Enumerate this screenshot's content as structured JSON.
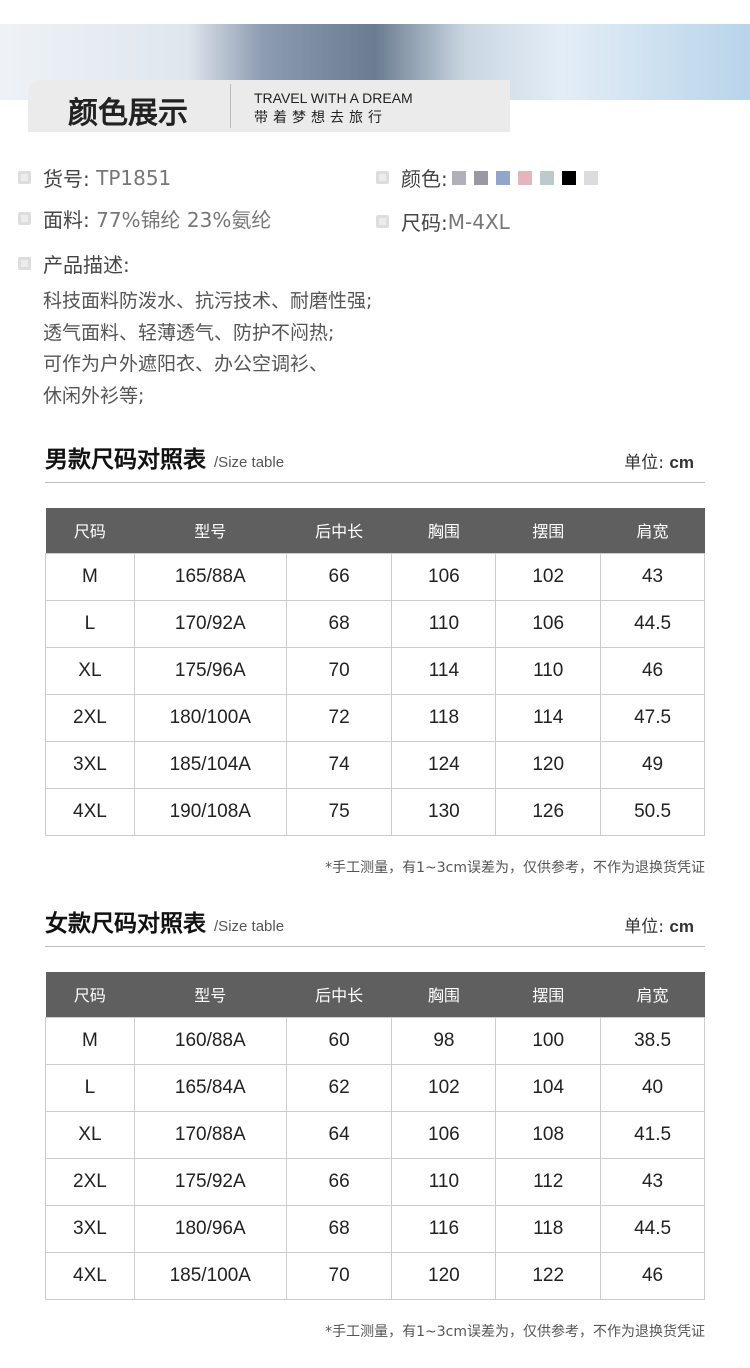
{
  "header": {
    "title": "颜色展示",
    "en": "TRAVEL WITH A DREAM",
    "cn": "带着梦想去旅行"
  },
  "info": {
    "item_label": "货号:",
    "item_value": "TP1851",
    "fabric_label": "面料:",
    "fabric_value": "77%锦纶 23%氨纶",
    "color_label": "颜色:",
    "size_label": "尺码:",
    "size_value": "M-4XL",
    "desc_label": "产品描述:",
    "desc_lines": [
      "科技面料防泼水、抗污技术、耐磨性强;",
      "透气面料、轻薄透气、防护不闷热;",
      "可作为户外遮阳衣、办公空调衫、",
      "休闲外衫等;"
    ],
    "colors": [
      "#b1b0b8",
      "#9a99a3",
      "#91a5cd",
      "#e4b5bd",
      "#bccacc",
      "#000000",
      "#dcdce0"
    ]
  },
  "men": {
    "title": "男款尺码对照表",
    "sub": "/Size table",
    "unit_label": "单位:",
    "unit": "cm",
    "headers": [
      "尺码",
      "型号",
      "后中长",
      "胸围",
      "摆围",
      "肩宽"
    ],
    "rows": [
      [
        "M",
        "165/88A",
        "66",
        "106",
        "102",
        "43"
      ],
      [
        "L",
        "170/92A",
        "68",
        "110",
        "106",
        "44.5"
      ],
      [
        "XL",
        "175/96A",
        "70",
        "114",
        "110",
        "46"
      ],
      [
        "2XL",
        "180/100A",
        "72",
        "118",
        "114",
        "47.5"
      ],
      [
        "3XL",
        "185/104A",
        "74",
        "124",
        "120",
        "49"
      ],
      [
        "4XL",
        "190/108A",
        "75",
        "130",
        "126",
        "50.5"
      ]
    ],
    "note": "*手工测量，有1~3cm误差为，仅供参考，不作为退换货凭证"
  },
  "women": {
    "title": "女款尺码对照表",
    "sub": "/Size table",
    "unit_label": "单位:",
    "unit": "cm",
    "headers": [
      "尺码",
      "型号",
      "后中长",
      "胸围",
      "摆围",
      "肩宽"
    ],
    "rows": [
      [
        "M",
        "160/88A",
        "60",
        "98",
        "100",
        "38.5"
      ],
      [
        "L",
        "165/84A",
        "62",
        "102",
        "104",
        "40"
      ],
      [
        "XL",
        "170/88A",
        "64",
        "106",
        "108",
        "41.5"
      ],
      [
        "2XL",
        "175/92A",
        "66",
        "110",
        "112",
        "43"
      ],
      [
        "3XL",
        "180/96A",
        "68",
        "116",
        "118",
        "44.5"
      ],
      [
        "4XL",
        "185/100A",
        "70",
        "120",
        "122",
        "46"
      ]
    ],
    "note": "*手工测量，有1~3cm误差为，仅供参考，不作为退换货凭证"
  }
}
